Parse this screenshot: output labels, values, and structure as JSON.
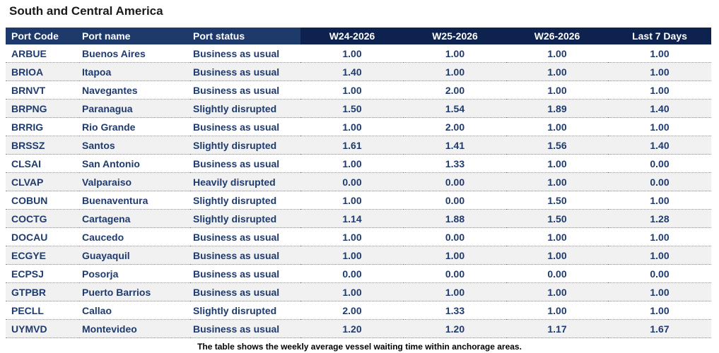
{
  "title": "South and Central America",
  "columns": {
    "code": "Port Code",
    "name": "Port name",
    "status": "Port status",
    "w24": "W24-2026",
    "w25": "W25-2026",
    "w26": "W26-2026",
    "last7": "Last 7 Days"
  },
  "rows": [
    {
      "code": "ARBUE",
      "name": "Buenos Aires",
      "status": "Business as usual",
      "w24": "1.00",
      "w25": "1.00",
      "w26": "1.00",
      "last7": "1.00"
    },
    {
      "code": "BRIOA",
      "name": "Itapoa",
      "status": "Business as usual",
      "w24": "1.40",
      "w25": "1.00",
      "w26": "1.00",
      "last7": "1.00"
    },
    {
      "code": "BRNVT",
      "name": "Navegantes",
      "status": "Business as usual",
      "w24": "1.00",
      "w25": "2.00",
      "w26": "1.00",
      "last7": "1.00"
    },
    {
      "code": "BRPNG",
      "name": "Paranagua",
      "status": "Slightly disrupted",
      "w24": "1.50",
      "w25": "1.54",
      "w26": "1.89",
      "last7": "1.40"
    },
    {
      "code": "BRRIG",
      "name": "Rio Grande",
      "status": "Business as usual",
      "w24": "1.00",
      "w25": "2.00",
      "w26": "1.00",
      "last7": "1.00"
    },
    {
      "code": "BRSSZ",
      "name": "Santos",
      "status": "Slightly disrupted",
      "w24": "1.61",
      "w25": "1.41",
      "w26": "1.56",
      "last7": "1.40"
    },
    {
      "code": "CLSAI",
      "name": "San Antonio",
      "status": "Business as usual",
      "w24": "1.00",
      "w25": "1.33",
      "w26": "1.00",
      "last7": "0.00"
    },
    {
      "code": "CLVAP",
      "name": "Valparaiso",
      "status": "Heavily disrupted",
      "w24": "0.00",
      "w25": "0.00",
      "w26": "1.00",
      "last7": "0.00"
    },
    {
      "code": "COBUN",
      "name": "Buenaventura",
      "status": "Slightly disrupted",
      "w24": "1.00",
      "w25": "0.00",
      "w26": "1.50",
      "last7": "1.00"
    },
    {
      "code": "COCTG",
      "name": "Cartagena",
      "status": "Slightly disrupted",
      "w24": "1.14",
      "w25": "1.88",
      "w26": "1.50",
      "last7": "1.28"
    },
    {
      "code": "DOCAU",
      "name": "Caucedo",
      "status": "Business as usual",
      "w24": "1.00",
      "w25": "0.00",
      "w26": "1.00",
      "last7": "1.00"
    },
    {
      "code": "ECGYE",
      "name": "Guayaquil",
      "status": "Business as usual",
      "w24": "1.00",
      "w25": "1.00",
      "w26": "1.00",
      "last7": "1.00"
    },
    {
      "code": "ECPSJ",
      "name": "Posorja",
      "status": "Business as usual",
      "w24": "0.00",
      "w25": "0.00",
      "w26": "0.00",
      "last7": "0.00"
    },
    {
      "code": "GTPBR",
      "name": "Puerto Barrios",
      "status": "Business as usual",
      "w24": "1.00",
      "w25": "1.00",
      "w26": "1.00",
      "last7": "1.00"
    },
    {
      "code": "PECLL",
      "name": "Callao",
      "status": "Slightly disrupted",
      "w24": "2.00",
      "w25": "1.33",
      "w26": "1.00",
      "last7": "1.00"
    },
    {
      "code": "UYMVD",
      "name": "Montevideo",
      "status": "Business as usual",
      "w24": "1.20",
      "w25": "1.20",
      "w26": "1.17",
      "last7": "1.67"
    }
  ],
  "caption": "The table shows the weekly average vessel waiting time within anchorage areas.",
  "colors": {
    "header_light": "#1e3a6b",
    "header_dark": "#0e2250",
    "cell_text": "#1f3b6e",
    "stripe": "#f1f1f1"
  }
}
